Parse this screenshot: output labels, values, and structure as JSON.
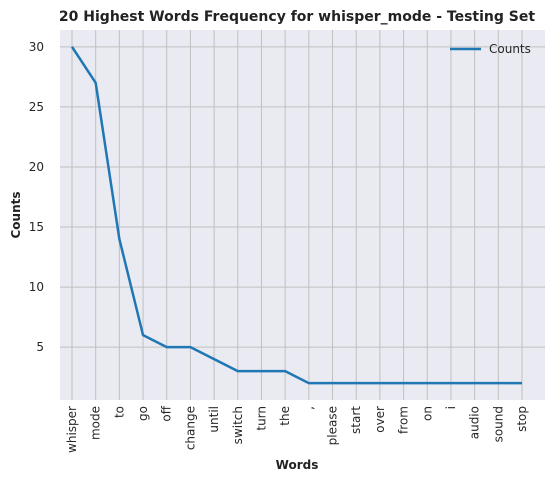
{
  "chart_data": {
    "type": "line",
    "title": "20 Highest Words Frequency for whisper_mode - Testing Set",
    "xlabel": "Words",
    "ylabel": "Counts",
    "categories": [
      "whisper",
      "mode",
      "to",
      "go",
      "off",
      "change",
      "until",
      "switch",
      "turn",
      "the",
      ",",
      "please",
      "start",
      "over",
      "from",
      "on",
      "i",
      "audio",
      "sound",
      "stop"
    ],
    "series": [
      {
        "name": "Counts",
        "values": [
          30,
          27,
          14,
          6,
          5,
          5,
          4,
          3,
          3,
          3,
          2,
          2,
          2,
          2,
          2,
          2,
          2,
          2,
          2,
          2
        ]
      }
    ],
    "yticks": [
      5,
      10,
      15,
      20,
      25,
      30
    ],
    "ylim": [
      0.6,
      31.4
    ],
    "grid": true,
    "legend_position": "top-right",
    "colors": {
      "line": "#1f77b4",
      "plot_bg": "#eaeaf2",
      "grid": "#c0c0c0"
    }
  }
}
